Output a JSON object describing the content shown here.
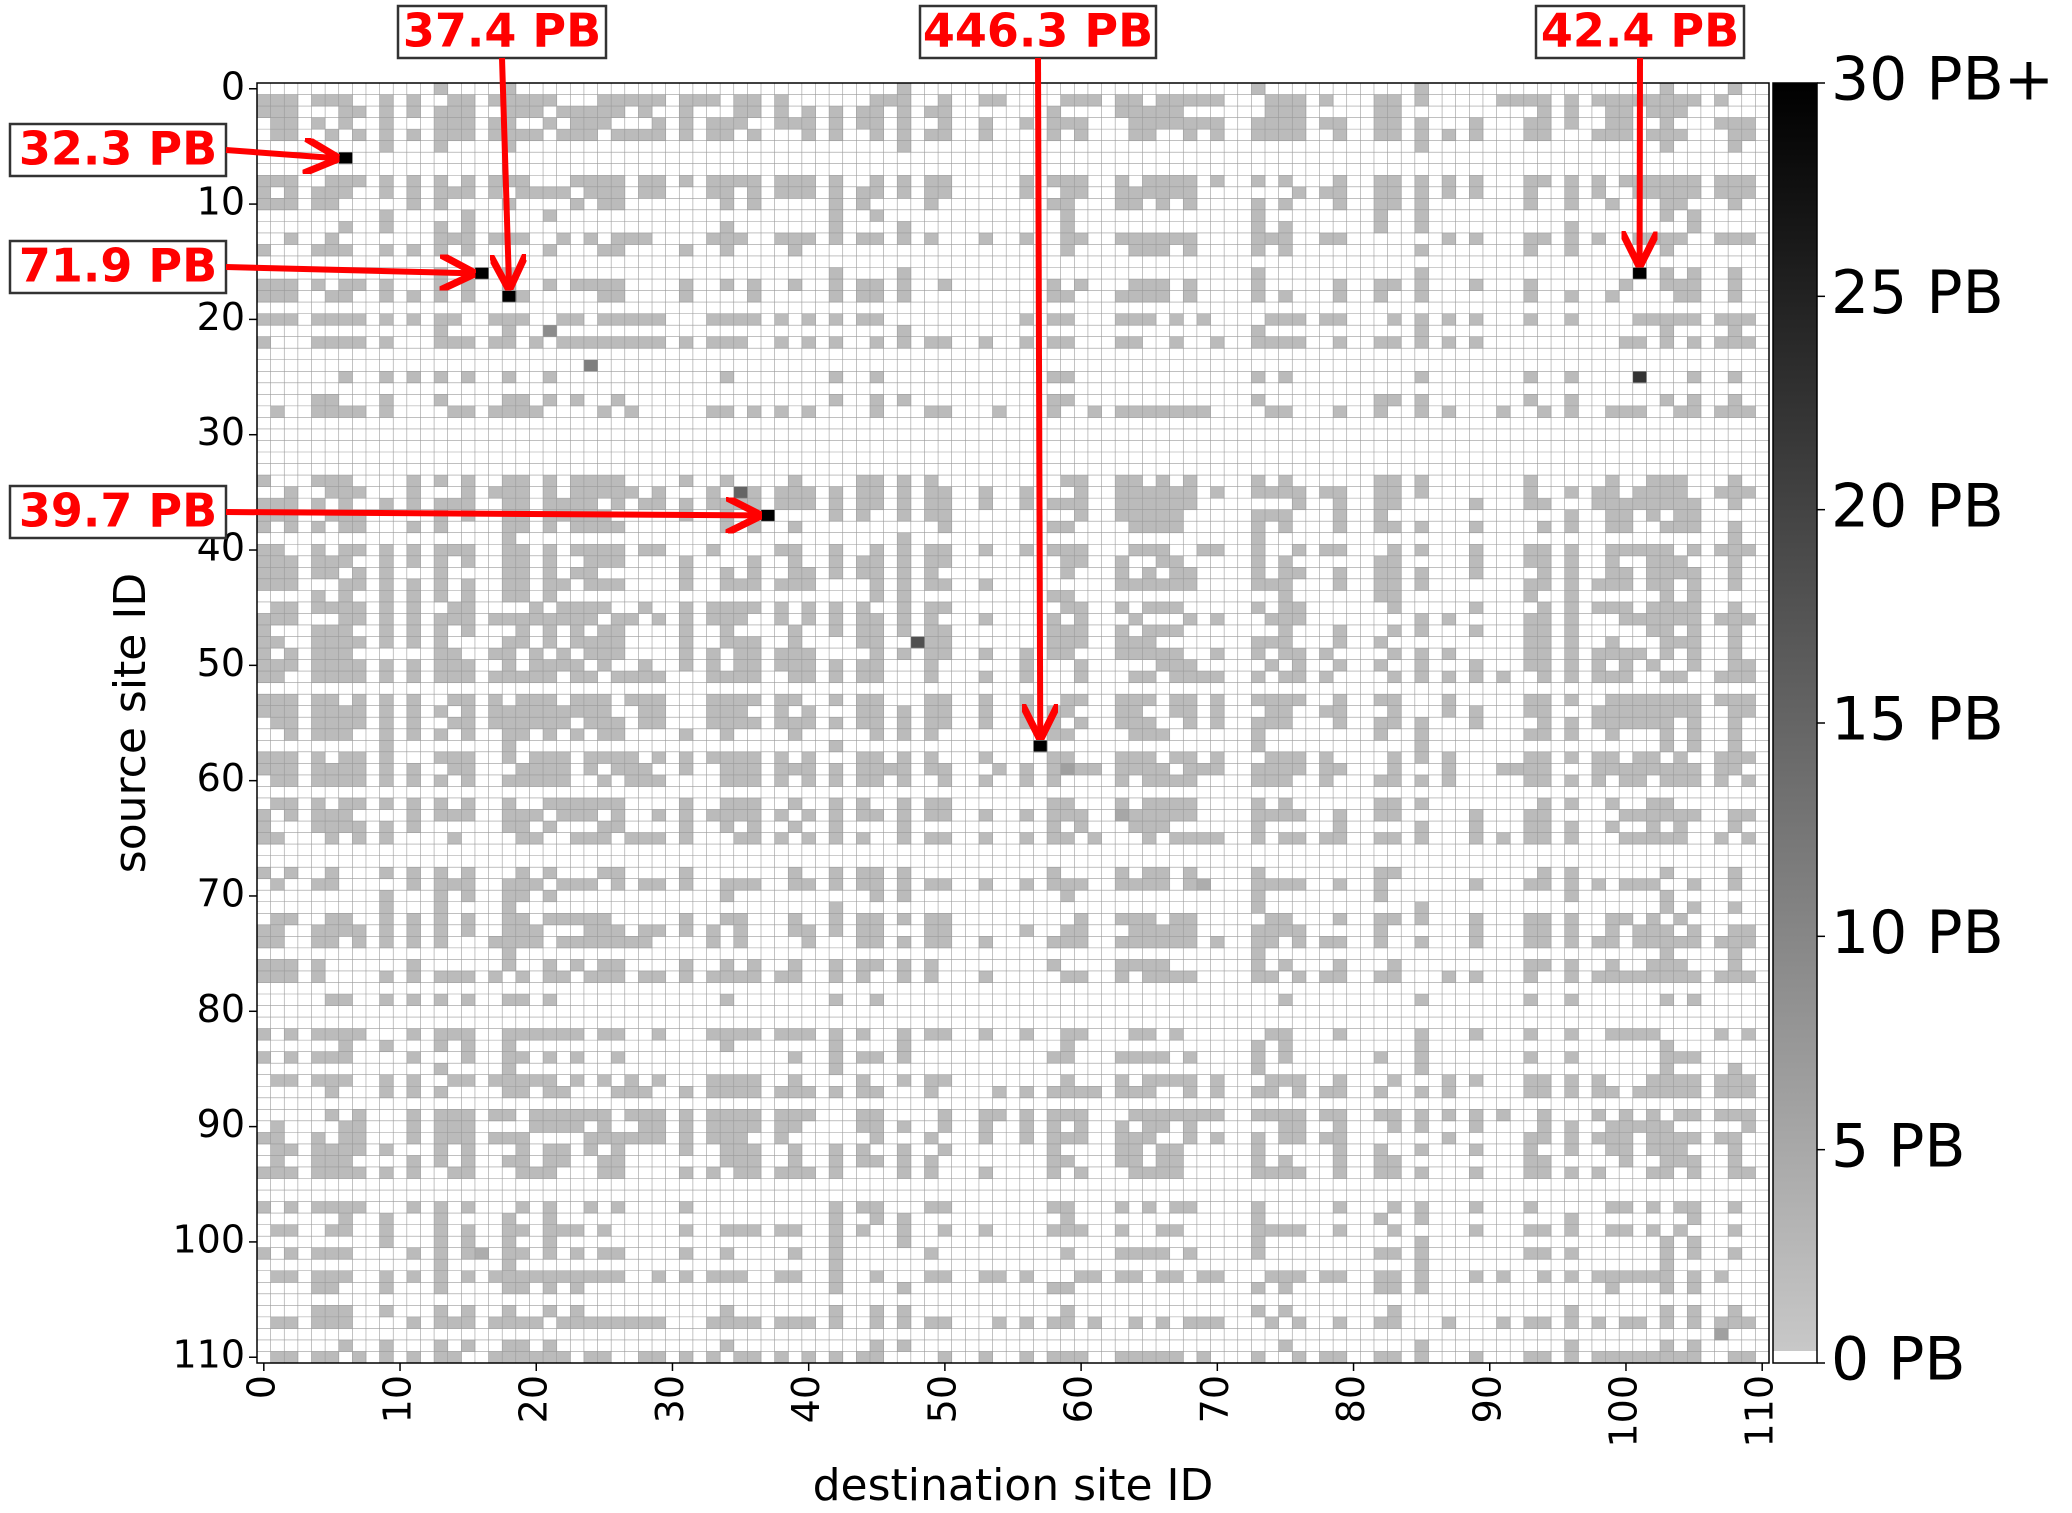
{
  "chart_data": {
    "type": "heatmap",
    "title": "",
    "xlabel": "destination site ID",
    "ylabel": "source site ID",
    "x_range": [
      0,
      110
    ],
    "y_range": [
      0,
      110
    ],
    "x_ticks": [
      "0",
      "10",
      "20",
      "30",
      "40",
      "50",
      "60",
      "70",
      "80",
      "90",
      "100",
      "110"
    ],
    "y_ticks": [
      "0",
      "10",
      "20",
      "30",
      "40",
      "50",
      "60",
      "70",
      "80",
      "90",
      "100",
      "110"
    ],
    "colorbar": {
      "min": 0,
      "max": 30,
      "labels": [
        "0 PB",
        "5 PB",
        "10 PB",
        "15 PB",
        "20 PB",
        "25 PB",
        "30 PB+"
      ],
      "colors": [
        "#ffffff",
        "#c8c8c8",
        "#000000"
      ]
    },
    "grid": true,
    "background_level": 2,
    "cells": [
      {
        "src": 6,
        "dst": 6,
        "value": 32.3
      },
      {
        "src": 16,
        "dst": 16,
        "value": 71.9
      },
      {
        "src": 18,
        "dst": 18,
        "value": 37.4
      },
      {
        "src": 16,
        "dst": 101,
        "value": 42.4
      },
      {
        "src": 37,
        "dst": 37,
        "value": 39.7
      },
      {
        "src": 57,
        "dst": 57,
        "value": 446.3
      },
      {
        "src": 25,
        "dst": 101,
        "value": 22
      },
      {
        "src": 48,
        "dst": 48,
        "value": 18
      },
      {
        "src": 35,
        "dst": 35,
        "value": 15
      },
      {
        "src": 21,
        "dst": 21,
        "value": 9
      },
      {
        "src": 24,
        "dst": 24,
        "value": 11
      },
      {
        "src": 59,
        "dst": 59,
        "value": 6
      },
      {
        "src": 63,
        "dst": 63,
        "value": 5
      },
      {
        "src": 69,
        "dst": 69,
        "value": 4
      },
      {
        "src": 108,
        "dst": 107,
        "value": 6
      },
      {
        "src": 101,
        "dst": 16,
        "value": 4
      }
    ],
    "annotations": [
      {
        "label": "32.3 PB",
        "src": 6,
        "dst": 6
      },
      {
        "label": "71.9 PB",
        "src": 16,
        "dst": 16
      },
      {
        "label": "37.4 PB",
        "src": 18,
        "dst": 18
      },
      {
        "label": "446.3 PB",
        "src": 57,
        "dst": 57
      },
      {
        "label": "42.4 PB",
        "src": 16,
        "dst": 101
      },
      {
        "label": "39.7 PB",
        "src": 37,
        "dst": 37
      }
    ]
  }
}
